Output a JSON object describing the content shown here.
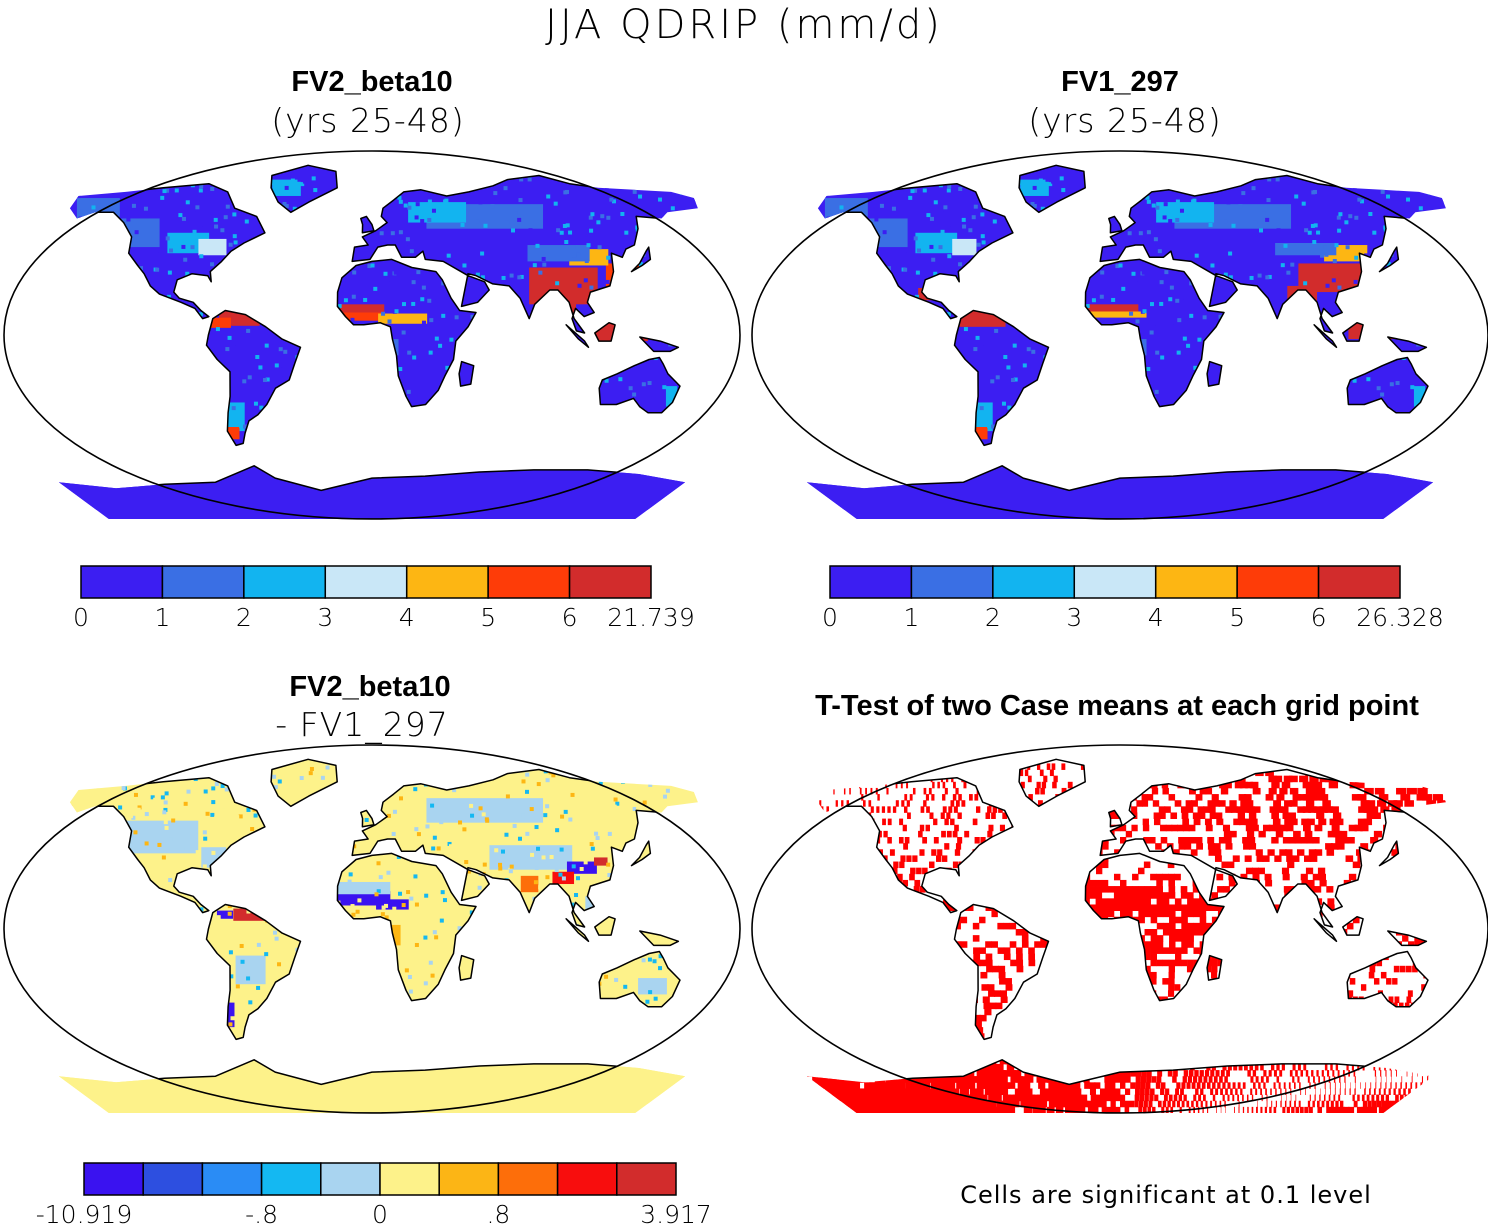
{
  "title": "JJA QDRIP (mm/d)",
  "panels": [
    {
      "id": "fv2",
      "title": "FV2_beta10",
      "subtitle": "(yrs 25-48)",
      "colorbar": {
        "colors": [
          "#3c1ef2",
          "#3a6fe4",
          "#12b4f0",
          "#c9e7f7",
          "#fdb613",
          "#fe3c08",
          "#d22c2c"
        ],
        "ticks": [
          "0",
          "1",
          "2",
          "3",
          "4",
          "5",
          "6",
          "21.739"
        ]
      }
    },
    {
      "id": "fv1",
      "title": "FV1_297",
      "subtitle": "(yrs 25-48)",
      "colorbar": {
        "colors": [
          "#3c1ef2",
          "#3a6fe4",
          "#12b4f0",
          "#c9e7f7",
          "#fdb613",
          "#fe3c08",
          "#d22c2c"
        ],
        "ticks": [
          "0",
          "1",
          "2",
          "3",
          "4",
          "5",
          "6",
          "26.328"
        ]
      }
    },
    {
      "id": "diff",
      "title": "FV2_beta10",
      "subtitle": "- FV1_297",
      "colorbar": {
        "colors": [
          "#3a12f0",
          "#2d4fe0",
          "#2a8cf5",
          "#14b8f2",
          "#a9d4f0",
          "#fdf28a",
          "#fcb515",
          "#fd6e0a",
          "#f80d0d",
          "#d22c2c"
        ],
        "ticks": [
          "-10.919",
          "-.8",
          "0",
          ".8",
          "3.917"
        ]
      }
    },
    {
      "id": "ttest",
      "title": "T-Test of two Case means at each grid point",
      "footnote": "Cells are significant at 0.1 level",
      "sig_color": "#ff0000"
    }
  ]
}
